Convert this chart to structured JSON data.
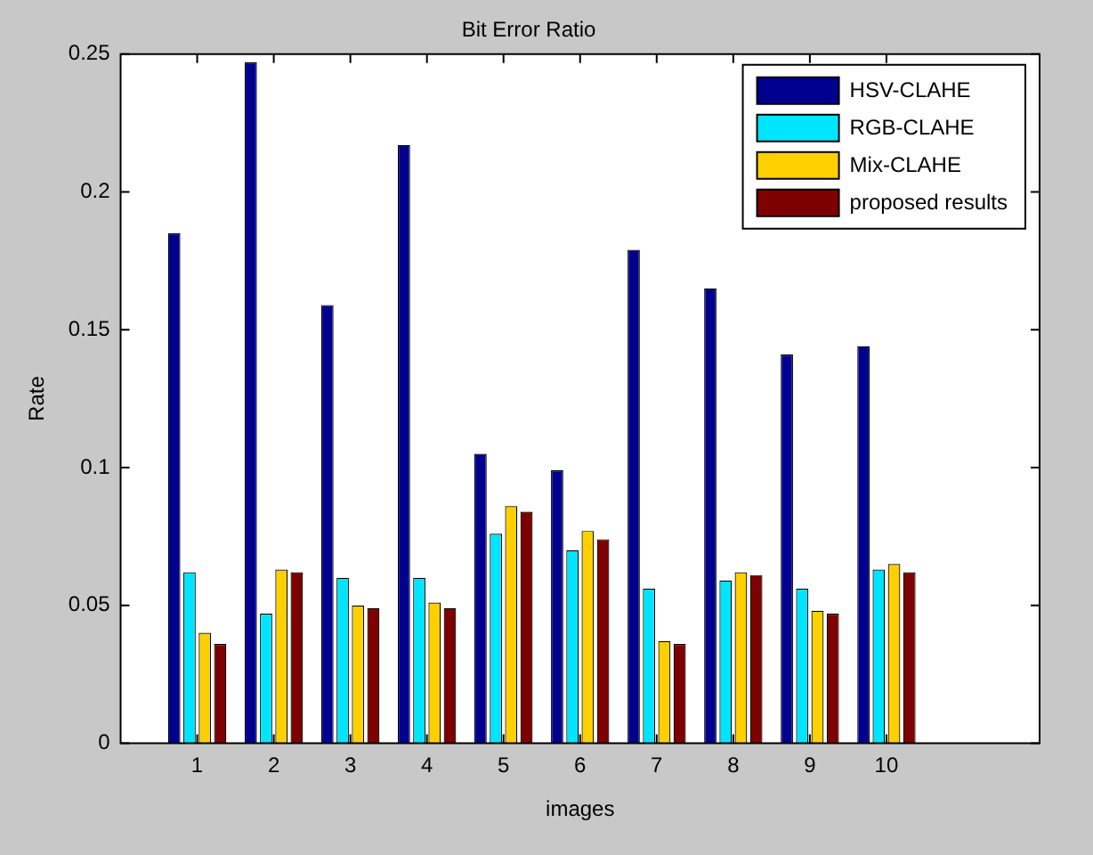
{
  "chart_data": {
    "type": "bar",
    "title": "Bit Error Ratio",
    "xlabel": "images",
    "ylabel": "Rate",
    "x": [
      1,
      2,
      3,
      4,
      5,
      6,
      7,
      8,
      9,
      10
    ],
    "series": [
      {
        "name": "HSV-CLAHE",
        "color": "#00008f",
        "values": [
          0.185,
          0.247,
          0.159,
          0.217,
          0.105,
          0.099,
          0.179,
          0.165,
          0.141,
          0.144
        ]
      },
      {
        "name": "RGB-CLAHE",
        "color": "#00e5ff",
        "values": [
          0.062,
          0.047,
          0.06,
          0.06,
          0.076,
          0.07,
          0.056,
          0.059,
          0.056,
          0.063
        ]
      },
      {
        "name": "Mix-CLAHE",
        "color": "#ffd000",
        "values": [
          0.04,
          0.063,
          0.05,
          0.051,
          0.086,
          0.077,
          0.037,
          0.062,
          0.048,
          0.065
        ]
      },
      {
        "name": "proposed results",
        "color": "#7f0000",
        "values": [
          0.036,
          0.062,
          0.049,
          0.049,
          0.084,
          0.074,
          0.036,
          0.061,
          0.047,
          0.062
        ]
      }
    ],
    "xlim": [
      0,
      12
    ],
    "xticks": [
      1,
      2,
      3,
      4,
      5,
      6,
      7,
      8,
      9,
      10
    ],
    "ylim": [
      0,
      0.25
    ],
    "yticks": [
      0,
      0.05,
      0.1,
      0.15,
      0.2,
      0.25
    ],
    "grid": false,
    "legend": "top right"
  }
}
